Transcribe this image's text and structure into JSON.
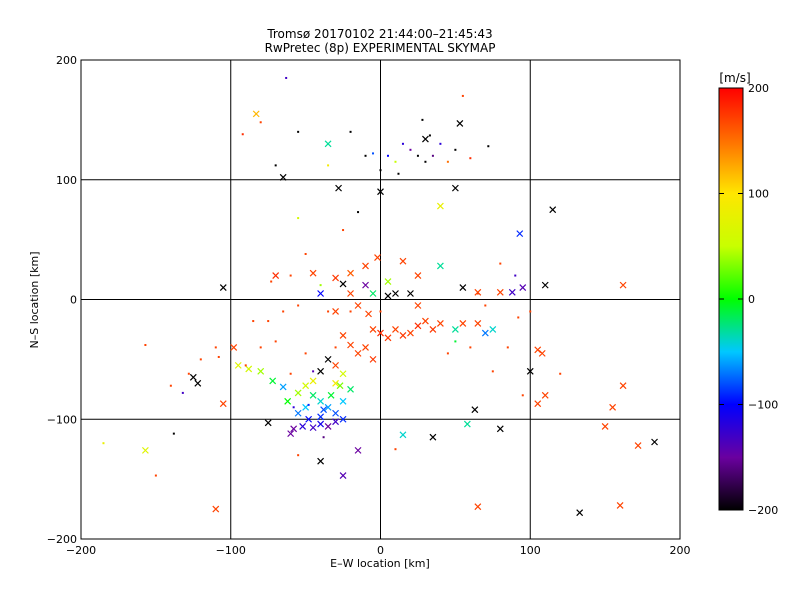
{
  "chart_data": {
    "type": "scatter",
    "title": "Tromsø 20170102 21:44:00–21:45:43",
    "subtitle": "RwPretec (8p) EXPERIMENTAL SKYMAP",
    "xlabel": "E–W location [km]",
    "ylabel": "N–S location [km]",
    "xlim": [
      -200,
      200
    ],
    "ylim": [
      -200,
      200
    ],
    "xticks": [
      "−200",
      "−100",
      "0",
      "100",
      "200"
    ],
    "yticks": [
      "−200",
      "−100",
      "0",
      "100",
      "200"
    ],
    "grid": true,
    "colorbar": {
      "label": "[m/s]",
      "range": [
        -200,
        200
      ],
      "ticks": [
        "200",
        "100",
        "0",
        "−100",
        "−200"
      ]
    },
    "series": [
      {
        "marker": "x",
        "points": [
          [
            -83,
            155,
            120
          ],
          [
            -35,
            130,
            -30
          ],
          [
            -65,
            102,
            -200
          ],
          [
            -28,
            93,
            -200
          ],
          [
            0,
            90,
            -200
          ],
          [
            53,
            147,
            -200
          ],
          [
            30,
            134,
            -200
          ],
          [
            50,
            93,
            -200
          ],
          [
            40,
            78,
            80
          ],
          [
            93,
            55,
            -90
          ],
          [
            115,
            75,
            -200
          ],
          [
            -105,
            10,
            -200
          ],
          [
            -70,
            20,
            180
          ],
          [
            -45,
            22,
            170
          ],
          [
            -30,
            18,
            175
          ],
          [
            -20,
            22,
            160
          ],
          [
            -10,
            28,
            170
          ],
          [
            -2,
            35,
            170
          ],
          [
            15,
            32,
            170
          ],
          [
            25,
            20,
            170
          ],
          [
            40,
            28,
            -30
          ],
          [
            -25,
            13,
            -200
          ],
          [
            -10,
            12,
            -150
          ],
          [
            5,
            15,
            40
          ],
          [
            10,
            5,
            -200
          ],
          [
            -40,
            5,
            -100
          ],
          [
            -20,
            5,
            170
          ],
          [
            -5,
            5,
            -20
          ],
          [
            5,
            3,
            -200
          ],
          [
            20,
            5,
            -200
          ],
          [
            25,
            -5,
            170
          ],
          [
            55,
            10,
            -200
          ],
          [
            65,
            6,
            170
          ],
          [
            80,
            6,
            170
          ],
          [
            88,
            6,
            -130
          ],
          [
            95,
            10,
            -140
          ],
          [
            110,
            12,
            -200
          ],
          [
            162,
            12,
            170
          ],
          [
            -30,
            -10,
            170
          ],
          [
            -15,
            -5,
            170
          ],
          [
            -8,
            -12,
            170
          ],
          [
            -5,
            -25,
            170
          ],
          [
            0,
            -28,
            180
          ],
          [
            5,
            -32,
            175
          ],
          [
            10,
            -25,
            170
          ],
          [
            15,
            -30,
            175
          ],
          [
            20,
            -28,
            170
          ],
          [
            25,
            -22,
            180
          ],
          [
            30,
            -18,
            170
          ],
          [
            35,
            -25,
            175
          ],
          [
            40,
            -20,
            170
          ],
          [
            50,
            -25,
            -30
          ],
          [
            55,
            -20,
            170
          ],
          [
            65,
            -20,
            170
          ],
          [
            70,
            -28,
            -70
          ],
          [
            75,
            -25,
            -40
          ],
          [
            -25,
            -30,
            170
          ],
          [
            -20,
            -38,
            170
          ],
          [
            -15,
            -45,
            170
          ],
          [
            -10,
            -40,
            170
          ],
          [
            -5,
            -50,
            175
          ],
          [
            -30,
            -55,
            170
          ],
          [
            -25,
            -62,
            60
          ],
          [
            -35,
            -50,
            -200
          ],
          [
            -40,
            -60,
            -200
          ],
          [
            -45,
            -68,
            80
          ],
          [
            -50,
            -72,
            60
          ],
          [
            -55,
            -78,
            40
          ],
          [
            -62,
            -85,
            0
          ],
          [
            -30,
            -70,
            90
          ],
          [
            -20,
            -75,
            -20
          ],
          [
            -45,
            -80,
            -20
          ],
          [
            -40,
            -85,
            -40
          ],
          [
            -35,
            -90,
            -60
          ],
          [
            -30,
            -95,
            -80
          ],
          [
            -25,
            -85,
            -50
          ],
          [
            -40,
            -98,
            -90
          ],
          [
            -50,
            -90,
            -50
          ],
          [
            -55,
            -95,
            -70
          ],
          [
            -48,
            -100,
            -100
          ],
          [
            -52,
            -106,
            -120
          ],
          [
            -58,
            -108,
            -150
          ],
          [
            -60,
            -112,
            -150
          ],
          [
            -45,
            -107,
            -130
          ],
          [
            -40,
            -104,
            -110
          ],
          [
            -35,
            -106,
            -150
          ],
          [
            -30,
            -102,
            -130
          ],
          [
            -25,
            -100,
            -90
          ],
          [
            -38,
            -92,
            -80
          ],
          [
            -33,
            -80,
            -10
          ],
          [
            -27,
            -72,
            30
          ],
          [
            -95,
            -55,
            70
          ],
          [
            -88,
            -58,
            60
          ],
          [
            -80,
            -60,
            40
          ],
          [
            -72,
            -68,
            -10
          ],
          [
            -65,
            -73,
            -60
          ],
          [
            -122,
            -70,
            -200
          ],
          [
            -125,
            -65,
            -200
          ],
          [
            -157,
            -126,
            70
          ],
          [
            -110,
            -175,
            170
          ],
          [
            -105,
            -87,
            170
          ],
          [
            -75,
            -103,
            -200
          ],
          [
            -15,
            -126,
            -150
          ],
          [
            -40,
            -135,
            -200
          ],
          [
            -25,
            -147,
            -140
          ],
          [
            15,
            -113,
            -40
          ],
          [
            35,
            -115,
            -200
          ],
          [
            58,
            -104,
            -30
          ],
          [
            80,
            -108,
            -200
          ],
          [
            63,
            -92,
            -200
          ],
          [
            65,
            -173,
            170
          ],
          [
            100,
            -60,
            -200
          ],
          [
            105,
            -42,
            170
          ],
          [
            108,
            -45,
            170
          ],
          [
            110,
            -80,
            170
          ],
          [
            105,
            -87,
            170
          ],
          [
            150,
            -106,
            170
          ],
          [
            155,
            -90,
            170
          ],
          [
            162,
            -72,
            170
          ],
          [
            172,
            -122,
            170
          ],
          [
            183,
            -119,
            -200
          ],
          [
            133,
            -178,
            -200
          ],
          [
            160,
            -172,
            170
          ],
          [
            -98,
            -40,
            170
          ]
        ]
      },
      {
        "marker": "dot",
        "points": [
          [
            -63,
            185,
            -130
          ],
          [
            -92,
            138,
            180
          ],
          [
            -80,
            148,
            170
          ],
          [
            -55,
            140,
            -200
          ],
          [
            -35,
            112,
            90
          ],
          [
            -70,
            112,
            -200
          ],
          [
            15,
            130,
            -120
          ],
          [
            20,
            125,
            -150
          ],
          [
            25,
            120,
            -200
          ],
          [
            30,
            115,
            -200
          ],
          [
            35,
            120,
            -160
          ],
          [
            40,
            130,
            -120
          ],
          [
            45,
            115,
            150
          ],
          [
            10,
            115,
            50
          ],
          [
            5,
            120,
            -100
          ],
          [
            -5,
            122,
            -80
          ],
          [
            50,
            125,
            -200
          ],
          [
            60,
            118,
            180
          ],
          [
            72,
            128,
            -200
          ],
          [
            28,
            150,
            -200
          ],
          [
            33,
            137,
            -200
          ],
          [
            55,
            170,
            170
          ],
          [
            -20,
            140,
            -200
          ],
          [
            -10,
            120,
            -200
          ],
          [
            0,
            108,
            -200
          ],
          [
            12,
            105,
            -200
          ],
          [
            -15,
            73,
            -200
          ],
          [
            -55,
            68,
            60
          ],
          [
            -25,
            58,
            170
          ],
          [
            -50,
            38,
            170
          ],
          [
            -60,
            20,
            170
          ],
          [
            -73,
            15,
            170
          ],
          [
            -40,
            12,
            40
          ],
          [
            -35,
            -10,
            170
          ],
          [
            -55,
            -5,
            170
          ],
          [
            -65,
            -10,
            170
          ],
          [
            -75,
            -18,
            170
          ],
          [
            -80,
            -40,
            170
          ],
          [
            -90,
            -55,
            170
          ],
          [
            -110,
            -40,
            170
          ],
          [
            -120,
            -50,
            170
          ],
          [
            -128,
            -62,
            170
          ],
          [
            -140,
            -72,
            170
          ],
          [
            -85,
            -18,
            170
          ],
          [
            -20,
            -10,
            170
          ],
          [
            0,
            -10,
            170
          ],
          [
            -50,
            -45,
            170
          ],
          [
            -70,
            -35,
            170
          ],
          [
            -60,
            -62,
            170
          ],
          [
            45,
            -45,
            170
          ],
          [
            60,
            -40,
            170
          ],
          [
            75,
            -60,
            170
          ],
          [
            85,
            -40,
            170
          ],
          [
            95,
            -80,
            170
          ],
          [
            120,
            -62,
            170
          ],
          [
            -132,
            -78,
            -130
          ],
          [
            -185,
            -120,
            80
          ],
          [
            -150,
            -147,
            170
          ],
          [
            -138,
            -112,
            -200
          ],
          [
            -55,
            -130,
            170
          ],
          [
            10,
            -125,
            170
          ],
          [
            80,
            30,
            170
          ],
          [
            90,
            20,
            -130
          ],
          [
            92,
            -15,
            170
          ],
          [
            100,
            -10,
            170
          ],
          [
            70,
            -5,
            170
          ],
          [
            65,
            5,
            170
          ],
          [
            -45,
            -60,
            -140
          ],
          [
            -30,
            -40,
            170
          ],
          [
            50,
            -35,
            -10
          ],
          [
            -108,
            -48,
            170
          ],
          [
            -157,
            -38,
            170
          ],
          [
            -38,
            -115,
            -160
          ],
          [
            -58,
            -90,
            -120
          ],
          [
            -48,
            -88,
            -90
          ]
        ]
      }
    ]
  }
}
